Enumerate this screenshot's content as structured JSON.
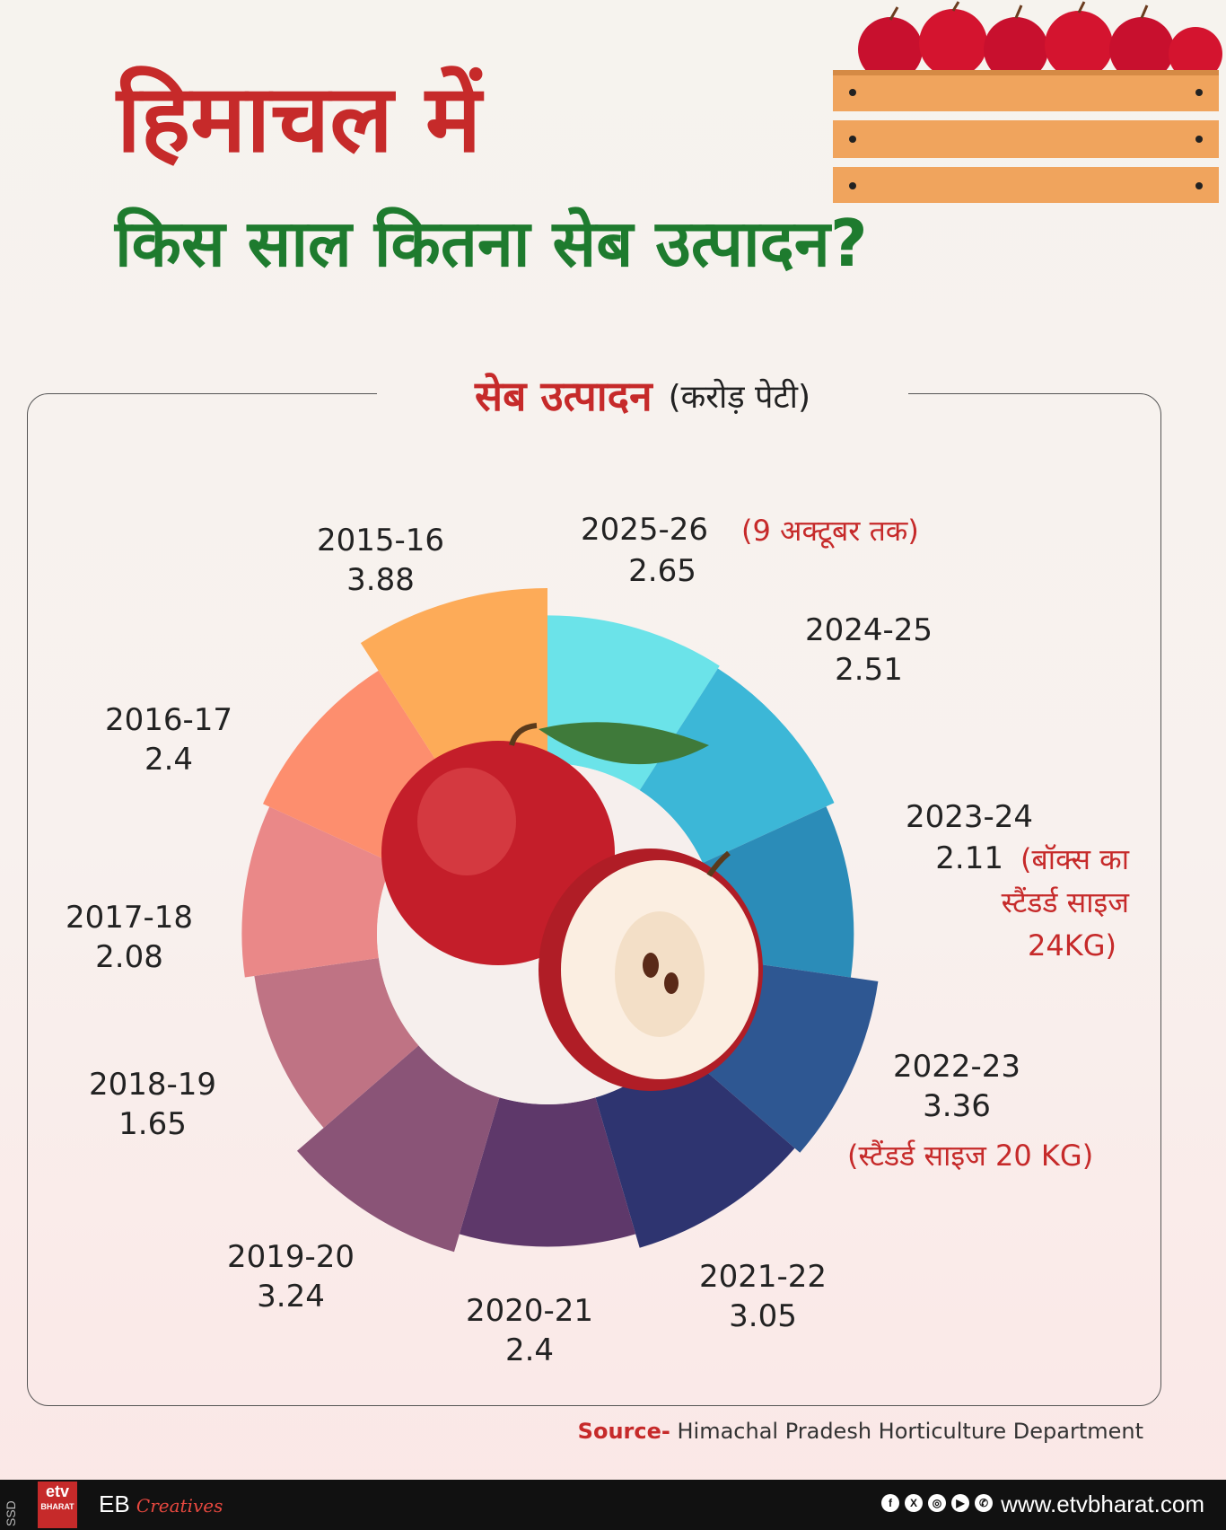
{
  "header": {
    "title_line1": "हिमाचल में",
    "title_line2": "किस साल कितना सेब उत्पादन?"
  },
  "chart_data": {
    "type": "pie",
    "title": "सेब उत्पादन",
    "unit": "(करोड़ पेटी)",
    "categories": [
      "2015-16",
      "2016-17",
      "2017-18",
      "2018-19",
      "2019-20",
      "2020-21",
      "2021-22",
      "2022-23",
      "2023-24",
      "2024-25",
      "2025-26"
    ],
    "values": [
      3.88,
      2.4,
      2.08,
      1.65,
      3.24,
      2.4,
      3.05,
      3.36,
      2.11,
      2.51,
      2.65
    ],
    "colors": [
      "#fdab58",
      "#fd8e6e",
      "#ea8888",
      "#bf7384",
      "#8a5477",
      "#5e386a",
      "#2e3470",
      "#2e5792",
      "#2b8cb8",
      "#3cb7d7",
      "#6be3e9"
    ],
    "notes": {
      "2025-26": "(9 अक्टूबर तक)",
      "2023-24": "(बॉक्स का स्टैंडर्ड साइज 24KG)",
      "2022-23": "(स्टैंडर्ड साइज 20 KG)"
    }
  },
  "notes_lines": {
    "n2023_l1": "(बॉक्स का",
    "n2023_l2": "स्टैंडर्ड साइज",
    "n2023_l3": "24KG)"
  },
  "source": {
    "label": "Source-",
    "text": "Himachal Pradesh Horticulture Department"
  },
  "footer": {
    "side": "SSD",
    "logo_text": "etv",
    "logo_sub": "BHARAT",
    "brand": "EB",
    "brand_script": "Creatives",
    "social_icons": [
      "facebook-icon",
      "x-icon",
      "instagram-icon",
      "youtube-icon",
      "whatsapp-icon"
    ],
    "website": "www.etvbharat.com"
  }
}
